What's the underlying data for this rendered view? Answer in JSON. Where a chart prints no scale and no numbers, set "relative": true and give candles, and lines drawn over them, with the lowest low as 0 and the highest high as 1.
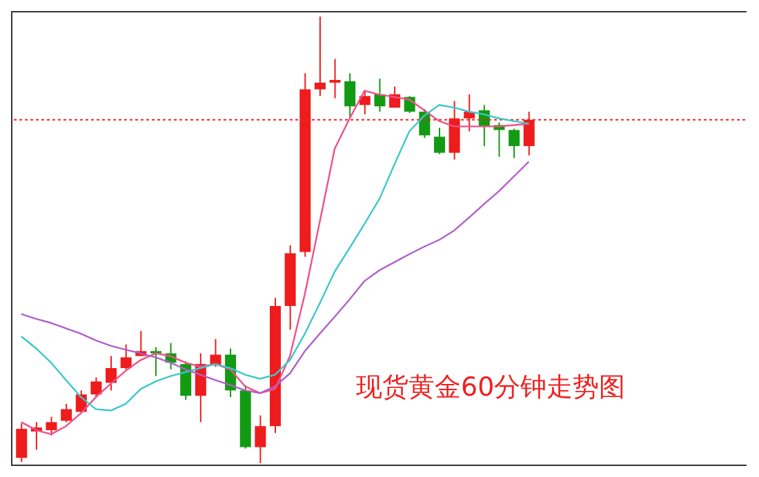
{
  "chart_data": {
    "type": "candlestick",
    "relative": true,
    "categories": [
      null,
      null,
      null,
      null,
      null,
      null,
      null,
      null,
      null,
      null,
      null,
      null,
      null,
      null,
      null,
      null,
      null,
      null,
      null,
      null,
      null,
      null,
      null,
      null,
      null,
      null,
      null,
      null,
      null,
      null,
      null,
      null,
      null,
      null,
      null,
      null,
      null,
      null,
      null,
      null,
      null,
      null,
      null,
      null,
      null,
      null,
      null,
      null,
      null
    ],
    "ohlc": [
      [
        0.012,
        0.089,
        0.003,
        0.077
      ],
      [
        0.071,
        0.092,
        0.03,
        0.08
      ],
      [
        0.074,
        0.104,
        0.062,
        0.092
      ],
      [
        0.095,
        0.133,
        0.092,
        0.121
      ],
      [
        0.115,
        0.163,
        0.112,
        0.154
      ],
      [
        0.154,
        0.192,
        0.148,
        0.183
      ],
      [
        0.18,
        0.24,
        0.163,
        0.213
      ],
      [
        0.213,
        0.266,
        0.21,
        0.237
      ],
      [
        0.24,
        0.296,
        0.24,
        0.251
      ],
      [
        0.251,
        0.26,
        0.195,
        0.246
      ],
      [
        0.246,
        0.269,
        0.21,
        0.225
      ],
      [
        0.222,
        0.228,
        0.142,
        0.151
      ],
      [
        0.151,
        0.246,
        0.092,
        0.222
      ],
      [
        0.219,
        0.278,
        0.216,
        0.243
      ],
      [
        0.243,
        0.257,
        0.148,
        0.163
      ],
      [
        0.163,
        0.175,
        0.033,
        0.036
      ],
      [
        0.036,
        0.107,
        0,
        0.083
      ],
      [
        0.083,
        0.37,
        0.068,
        0.352
      ],
      [
        0.352,
        0.488,
        0.299,
        0.47
      ],
      [
        0.473,
        0.873,
        0.462,
        0.837
      ],
      [
        0.837,
        1,
        0.822,
        0.852
      ],
      [
        0.852,
        0.905,
        0.817,
        0.858
      ],
      [
        0.855,
        0.873,
        0.772,
        0.799
      ],
      [
        0.802,
        0.834,
        0.781,
        0.822
      ],
      [
        0.826,
        0.861,
        0.787,
        0.799
      ],
      [
        0.796,
        0.843,
        0.796,
        0.826
      ],
      [
        0.82,
        0.822,
        0.784,
        0.787
      ],
      [
        0.787,
        0.793,
        0.728,
        0.734
      ],
      [
        0.731,
        0.751,
        0.692,
        0.695
      ],
      [
        0.695,
        0.811,
        0.68,
        0.772
      ],
      [
        0.772,
        0.826,
        0.743,
        0.787
      ],
      [
        0.79,
        0.802,
        0.71,
        0.754
      ],
      [
        0.757,
        0.763,
        0.686,
        0.746
      ],
      [
        0.746,
        0.749,
        0.683,
        0.71
      ],
      [
        0.71,
        0.787,
        0.689,
        0.769
      ],
      null,
      null,
      null,
      null,
      null,
      null,
      null,
      null,
      null,
      null,
      null,
      null,
      null,
      null
    ],
    "colors": [
      "#ee1c1c",
      "#ee1c1c",
      "#ee1c1c",
      "#ee1c1c",
      "#ee1c1c",
      "#ee1c1c",
      "#ee1c1c",
      "#ee1c1c",
      "#ee1c1c",
      "#139a13",
      "#139a13",
      "#139a13",
      "#ee1c1c",
      "#ee1c1c",
      "#139a13",
      "#139a13",
      "#ee1c1c",
      "#ee1c1c",
      "#ee1c1c",
      "#ee1c1c",
      "#ee1c1c",
      "#ee1c1c",
      "#139a13",
      "#ee1c1c",
      "#139a13",
      "#ee1c1c",
      "#139a13",
      "#139a13",
      "#139a13",
      "#ee1c1c",
      "#ee1c1c",
      "#139a13",
      "#139a13",
      "#139a13",
      "#ee1c1c",
      null,
      null,
      null,
      null,
      null,
      null,
      null,
      null,
      null,
      null,
      null,
      null,
      null,
      null
    ],
    "series": [
      {
        "type": "line",
        "color": "#f0508a",
        "values": [
          0.092,
          0.074,
          0.065,
          0.083,
          0.112,
          0.148,
          0.178,
          0.207,
          0.231,
          0.246,
          0.24,
          0.225,
          0.216,
          0.222,
          0.21,
          0.172,
          0.157,
          0.166,
          0.24,
          0.379,
          0.541,
          0.704,
          0.772,
          0.834,
          0.825,
          0.82,
          0.814,
          0.79,
          0.766,
          0.754,
          0.754,
          0.754,
          0.754,
          0.757,
          0.76,
          null,
          null,
          null,
          null,
          null,
          null,
          null,
          null,
          null,
          null,
          null,
          null,
          null,
          null
        ]
      },
      {
        "type": "line",
        "color": "#3cc8cc",
        "values": [
          0.284,
          0.257,
          0.225,
          0.186,
          0.148,
          0.121,
          0.118,
          0.133,
          0.166,
          0.183,
          0.195,
          0.204,
          0.213,
          0.222,
          0.213,
          0.198,
          0.189,
          0.198,
          0.231,
          0.29,
          0.358,
          0.429,
          0.482,
          0.536,
          0.592,
          0.669,
          0.743,
          0.778,
          0.802,
          0.796,
          0.787,
          0.781,
          0.772,
          0.766,
          0.76,
          null,
          null,
          null,
          null,
          null,
          null,
          null,
          null,
          null,
          null,
          null,
          null,
          null,
          null
        ]
      },
      {
        "type": "line",
        "color": "#b060c8",
        "values": [
          0.334,
          0.323,
          0.314,
          0.302,
          0.29,
          0.275,
          0.263,
          0.254,
          0.246,
          0.237,
          0.225,
          0.21,
          0.198,
          0.186,
          0.175,
          0.163,
          0.157,
          0.172,
          0.201,
          0.251,
          0.29,
          0.328,
          0.367,
          0.408,
          0.432,
          0.45,
          0.468,
          0.485,
          0.5,
          0.521,
          0.55,
          0.58,
          0.609,
          0.642,
          0.675,
          null,
          null,
          null,
          null,
          null,
          null,
          null,
          null,
          null,
          null,
          null,
          null,
          null,
          null
        ]
      }
    ],
    "ref_lines": [
      {
        "axis": "y",
        "value": 0.769,
        "color": "#ee2222",
        "line_style": "dotted"
      }
    ],
    "annotations": [
      "现货黄金60分钟走势图"
    ],
    "tick_labels": false
  }
}
